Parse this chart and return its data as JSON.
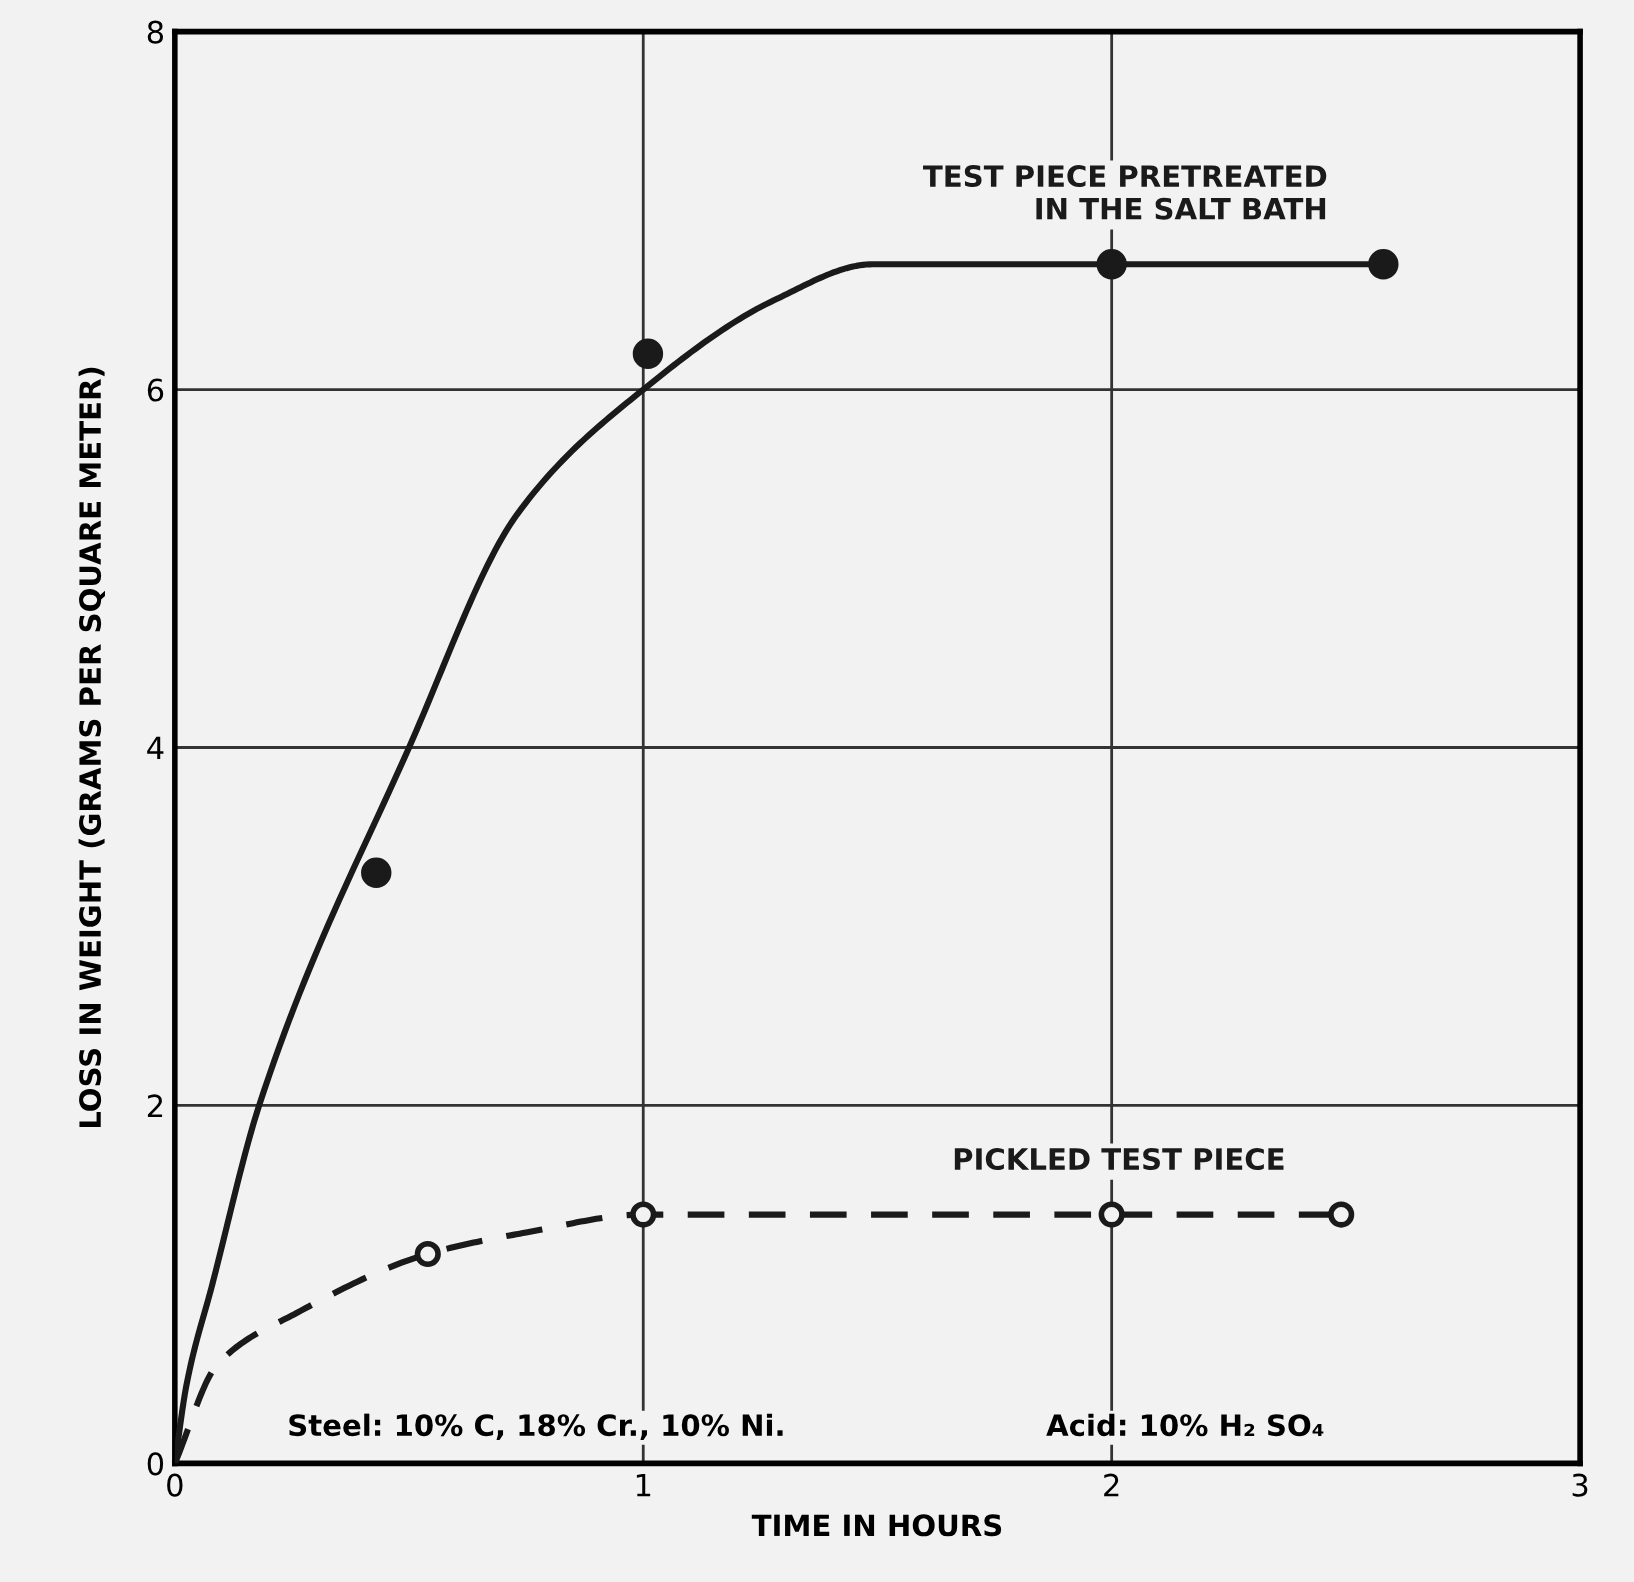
{
  "chart_data": {
    "type": "line",
    "xlabel": "TIME IN HOURS",
    "ylabel": "LOSS IN WEIGHT (GRAMS PER SQUARE METER)",
    "xlim": [
      0,
      3
    ],
    "ylim": [
      0,
      8
    ],
    "xticks": [
      0,
      1,
      2,
      3
    ],
    "yticks": [
      0,
      2,
      4,
      6,
      8
    ],
    "grid": true,
    "series": [
      {
        "name": "TEST PIECE PRETREATED\nIN THE SALT BATH",
        "color": "#1a1a1a",
        "line_style": "solid",
        "marker": "none",
        "x": [
          0,
          0.025,
          0.08,
          0.18,
          0.5,
          0.73,
          1.0,
          1.28,
          1.49,
          2.0,
          2.58
        ],
        "values": [
          0,
          0.44,
          1.0,
          2.0,
          4.0,
          5.3,
          6.0,
          6.5,
          6.7,
          6.7,
          6.7
        ]
      },
      {
        "type": "scatter",
        "color": "#1a1a1a",
        "marker": "circle",
        "x": [
          0.43,
          1.01,
          2.0,
          2.58
        ],
        "values": [
          3.3,
          6.2,
          6.7,
          6.7
        ]
      },
      {
        "name": "PICKLED TEST PIECE",
        "color": "#1a1a1a",
        "line_style": "dashed",
        "marker": "none",
        "x": [
          0,
          0.09,
          0.26,
          0.54,
          0.75,
          1.0,
          2.0,
          2.49
        ],
        "values": [
          0,
          0.55,
          0.84,
          1.17,
          1.29,
          1.39,
          1.39,
          1.39
        ]
      },
      {
        "type": "scatter",
        "color": "#1a1a1a",
        "marker": "circle",
        "x": [
          0.54,
          1.0,
          2.0,
          2.49
        ],
        "values": [
          1.17,
          1.39,
          1.39,
          1.39
        ]
      }
    ],
    "annotations": [
      "Steel: 10% C, 18% Cr., 10% Ni.",
      "Acid: 10% H₂ SO₄"
    ]
  }
}
